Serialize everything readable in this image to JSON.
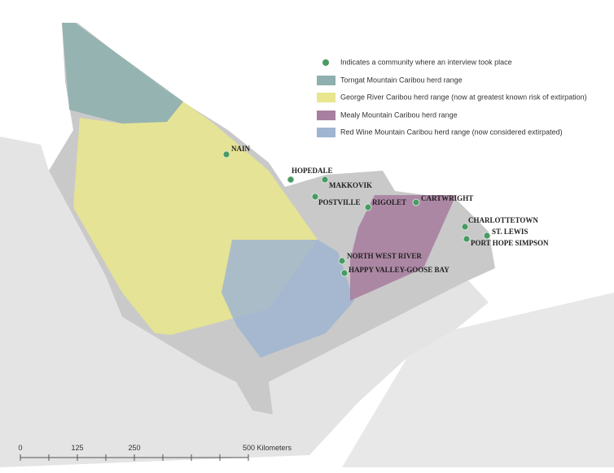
{
  "legend": {
    "items": [
      {
        "label": "Indicates a community where an interview took place"
      },
      {
        "label": "Torngat Mountain Caribou herd range"
      },
      {
        "label": "George River Caribou herd range (now at greatest known risk of extirpation)"
      },
      {
        "label": "Mealy Mountain Caribou herd range"
      },
      {
        "label": "Red Wine Mountain Caribou herd range (now considered extirpated)"
      }
    ]
  },
  "communities": [
    "NAIN",
    "HOPEDALE",
    "MAKKOVIK",
    "POSTVILLE",
    "RIGOLET",
    "CARTWRIGHT",
    "CHARLOTTETOWN",
    "ST. LEWIS",
    "PORT HOPE SIMPSON",
    "NORTH WEST RIVER",
    "HAPPY VALLEY-GOOSE BAY"
  ],
  "scale_bar": {
    "labels": [
      "0",
      "125",
      "250",
      "500 Kilometers"
    ]
  }
}
